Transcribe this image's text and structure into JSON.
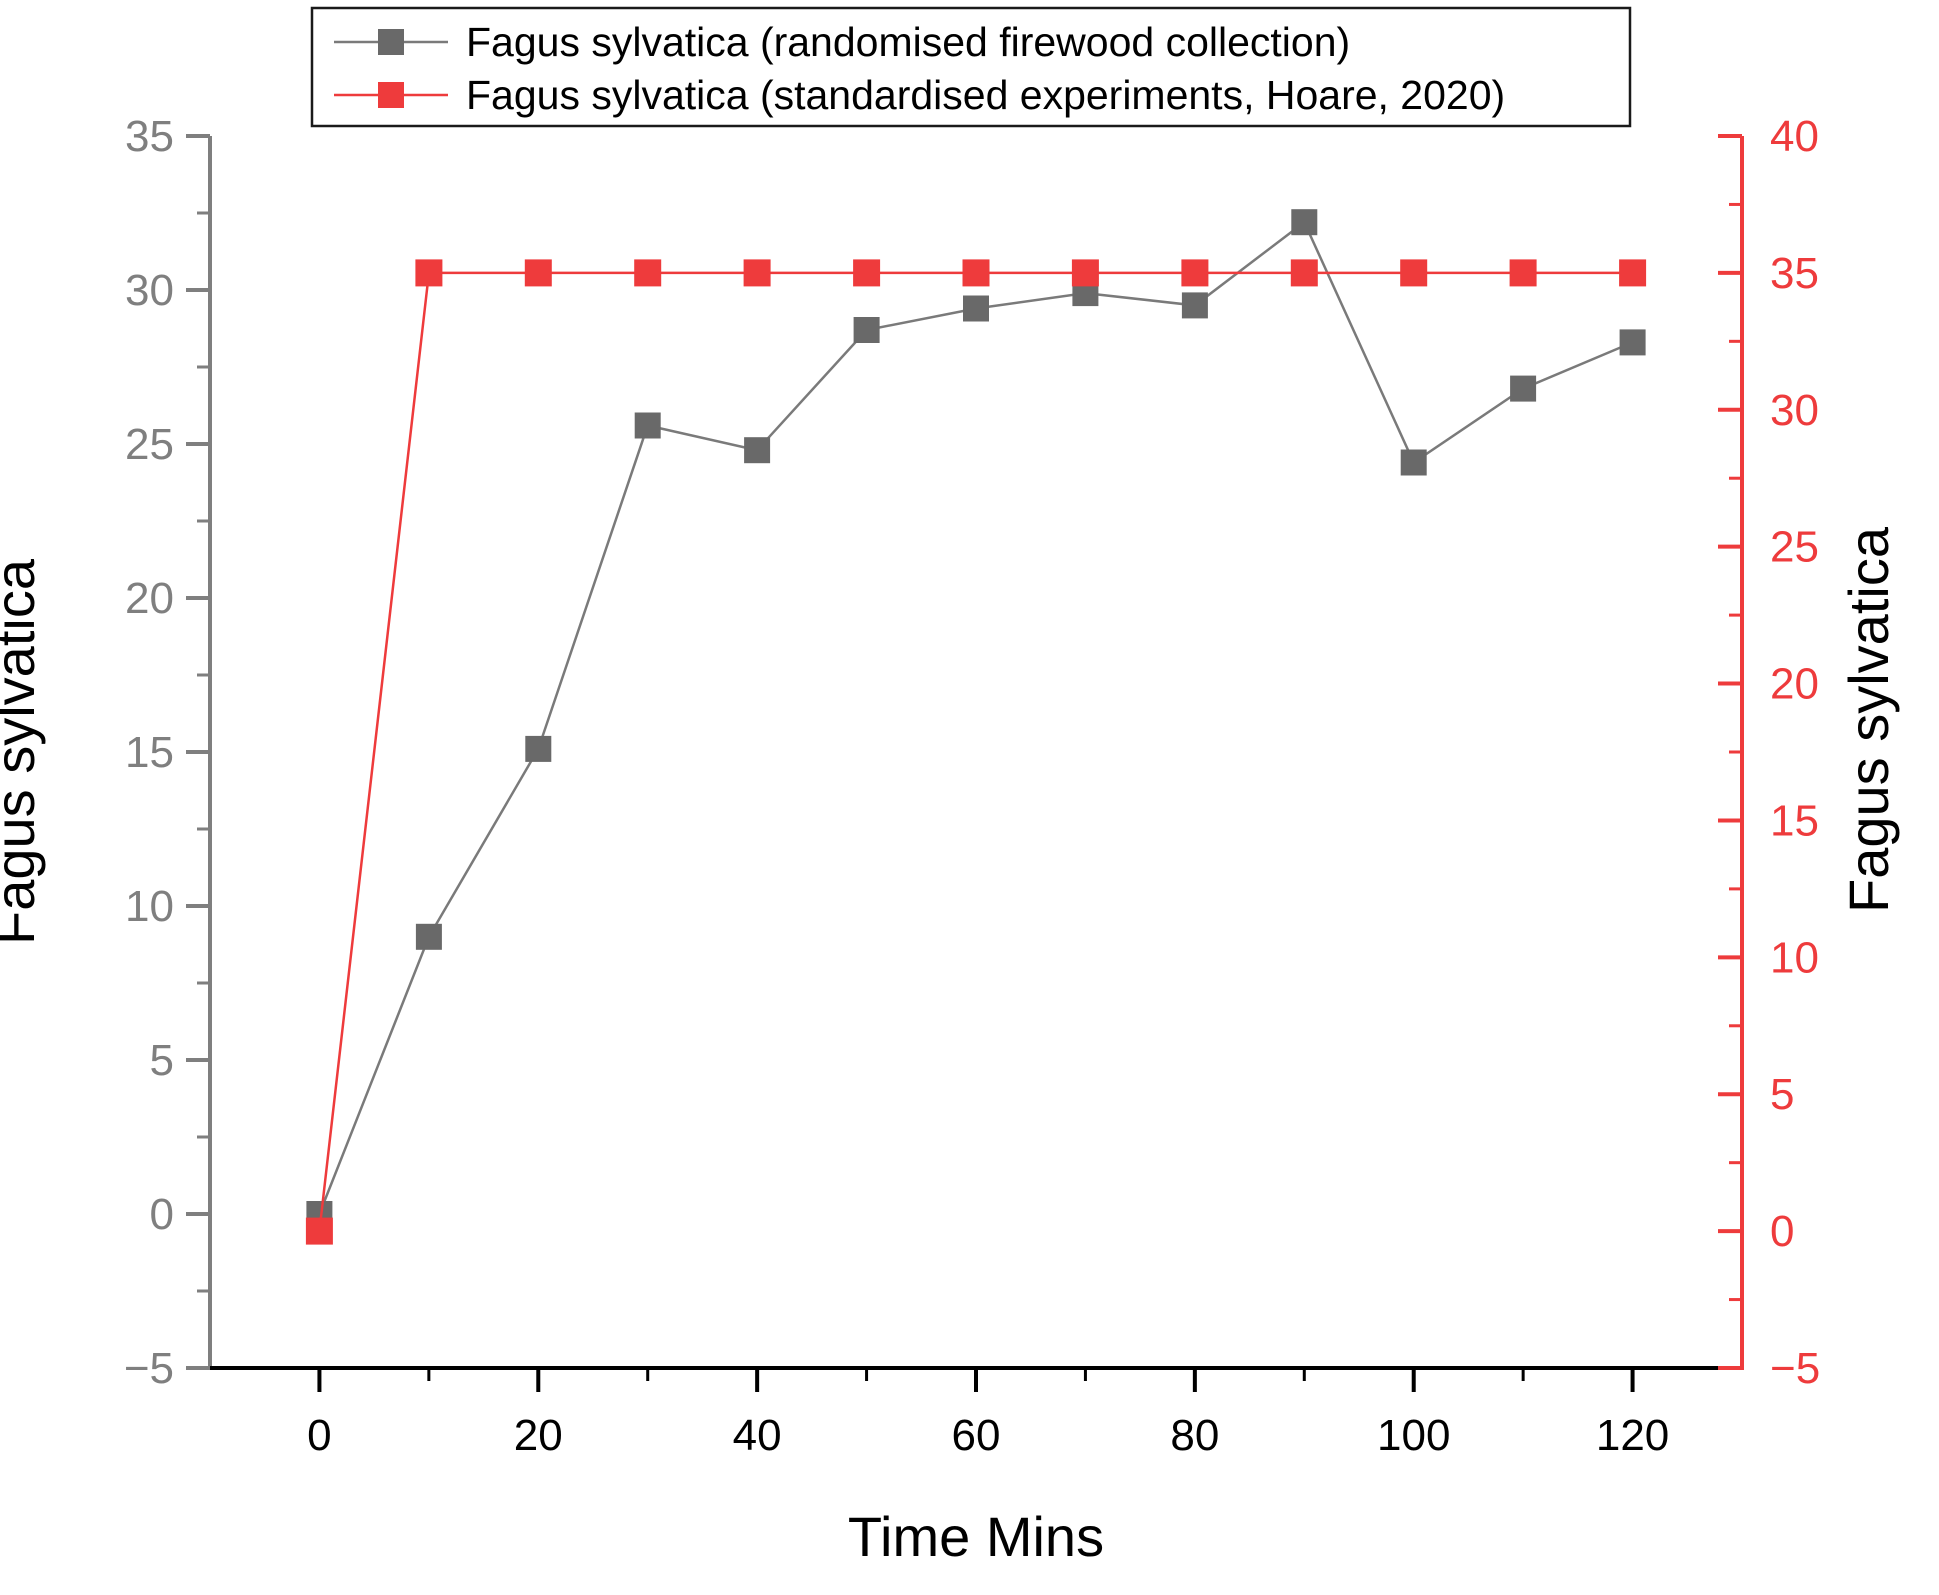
{
  "figure": {
    "background": "#ffffff",
    "x_axis": {
      "label": "Time Mins",
      "min": -10,
      "max": 130,
      "major_ticks": [
        0,
        20,
        40,
        60,
        80,
        100,
        120
      ],
      "minor_ticks": [
        10,
        30,
        50,
        70,
        90,
        110
      ],
      "color": "#000000"
    },
    "left_axis": {
      "label": "Fagus sylvatica",
      "min": -5,
      "max": 35,
      "major_ticks": [
        -5,
        0,
        5,
        10,
        15,
        20,
        25,
        30,
        35
      ],
      "minor_ticks": [
        -2.5,
        2.5,
        7.5,
        12.5,
        17.5,
        22.5,
        27.5,
        32.5
      ],
      "color": "#7f7f7f"
    },
    "right_axis": {
      "label": "Fagus sylvatica",
      "min": -5,
      "max": 40,
      "major_ticks": [
        -5,
        0,
        5,
        10,
        15,
        20,
        25,
        30,
        35,
        40
      ],
      "minor_ticks": [
        -2.5,
        2.5,
        7.5,
        12.5,
        17.5,
        22.5,
        27.5,
        32.5,
        37.5
      ],
      "color": "#ee3b3c"
    },
    "legend": {
      "border_color": "#1a1a1a",
      "entries": [
        {
          "label": "Fagus sylvatica (randomised firewood collection)",
          "line_color": "#7a7a7a",
          "marker_color": "#696969"
        },
        {
          "label": "Fagus sylvatica (standardised experiments, Hoare, 2020)",
          "line_color": "#ee3b3c",
          "marker_color": "#ee3b3c"
        }
      ]
    }
  },
  "chart_data": {
    "type": "line",
    "title": "",
    "xlabel": "Time Mins",
    "ylabel_left": "Fagus sylvatica",
    "ylabel_right": "Fagus sylvatica",
    "xlim": [
      -10,
      130
    ],
    "ylim_left": [
      -5,
      35
    ],
    "ylim_right": [
      -5,
      40
    ],
    "grid": false,
    "legend_position": "top",
    "x": [
      0,
      10,
      20,
      30,
      40,
      50,
      60,
      70,
      80,
      90,
      100,
      110,
      120
    ],
    "series": [
      {
        "name": "Fagus sylvatica (randomised firewood collection)",
        "axis": "left",
        "marker": "square",
        "line_color": "#7a7a7a",
        "marker_color": "#696969",
        "values": [
          0.0,
          9.0,
          15.1,
          25.6,
          24.8,
          28.7,
          29.4,
          29.9,
          29.5,
          32.2,
          24.4,
          26.8,
          28.3
        ]
      },
      {
        "name": "Fagus sylvatica (standardised experiments, Hoare, 2020)",
        "axis": "right",
        "marker": "square",
        "line_color": "#ee3b3c",
        "marker_color": "#ee3b3c",
        "values": [
          0,
          35,
          35,
          35,
          35,
          35,
          35,
          35,
          35,
          35,
          35,
          35,
          35
        ]
      }
    ]
  }
}
